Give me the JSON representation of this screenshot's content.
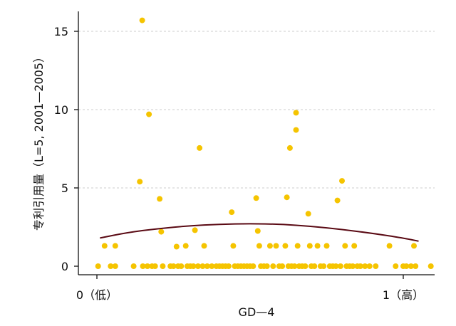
{
  "chart_data": {
    "type": "scatter",
    "title": "",
    "xlabel": "GD—4",
    "ylabel": "专利引用量（L=5, 2001—2005）",
    "xlim": [
      -0.05,
      1.05
    ],
    "ylim": [
      -0.5,
      16.5
    ],
    "x_tick_labels": [
      {
        "x": 0,
        "label": "0（低）"
      },
      {
        "x": 1,
        "label": "1（高）"
      }
    ],
    "y_ticks": [
      0,
      5,
      10,
      15
    ],
    "grid": {
      "horizontal": true,
      "style": "dashed",
      "color": "#cccccc"
    },
    "colors": {
      "points": "#F5C400",
      "fit_line": "#5A0A14",
      "axis": "#111111"
    },
    "points": [
      [
        0.004,
        0
      ],
      [
        0.025,
        1.3
      ],
      [
        0.045,
        0
      ],
      [
        0.06,
        1.3
      ],
      [
        0.06,
        0
      ],
      [
        0.12,
        0
      ],
      [
        0.14,
        5.4
      ],
      [
        0.148,
        15.7
      ],
      [
        0.15,
        0
      ],
      [
        0.165,
        0
      ],
      [
        0.17,
        9.7
      ],
      [
        0.18,
        0
      ],
      [
        0.19,
        0
      ],
      [
        0.205,
        4.3
      ],
      [
        0.21,
        2.2
      ],
      [
        0.215,
        0
      ],
      [
        0.24,
        0
      ],
      [
        0.25,
        0
      ],
      [
        0.26,
        1.25
      ],
      [
        0.265,
        0
      ],
      [
        0.275,
        0
      ],
      [
        0.29,
        1.3
      ],
      [
        0.295,
        0
      ],
      [
        0.305,
        0
      ],
      [
        0.315,
        0
      ],
      [
        0.32,
        2.3
      ],
      [
        0.33,
        0
      ],
      [
        0.335,
        7.55
      ],
      [
        0.345,
        0
      ],
      [
        0.35,
        1.3
      ],
      [
        0.36,
        0
      ],
      [
        0.375,
        0
      ],
      [
        0.39,
        0
      ],
      [
        0.4,
        0
      ],
      [
        0.41,
        0
      ],
      [
        0.42,
        0
      ],
      [
        0.43,
        0
      ],
      [
        0.44,
        3.45
      ],
      [
        0.445,
        1.3
      ],
      [
        0.45,
        0
      ],
      [
        0.46,
        0
      ],
      [
        0.47,
        0
      ],
      [
        0.48,
        0
      ],
      [
        0.49,
        0
      ],
      [
        0.5,
        0
      ],
      [
        0.51,
        0
      ],
      [
        0.52,
        4.35
      ],
      [
        0.525,
        2.25
      ],
      [
        0.53,
        1.3
      ],
      [
        0.535,
        0
      ],
      [
        0.545,
        0
      ],
      [
        0.555,
        0
      ],
      [
        0.565,
        1.3
      ],
      [
        0.575,
        0
      ],
      [
        0.585,
        1.3
      ],
      [
        0.595,
        0
      ],
      [
        0.605,
        0
      ],
      [
        0.615,
        1.3
      ],
      [
        0.62,
        4.4
      ],
      [
        0.625,
        0
      ],
      [
        0.63,
        7.55
      ],
      [
        0.635,
        0
      ],
      [
        0.645,
        0
      ],
      [
        0.65,
        9.8
      ],
      [
        0.65,
        8.7
      ],
      [
        0.655,
        1.3
      ],
      [
        0.66,
        0
      ],
      [
        0.67,
        0
      ],
      [
        0.68,
        0
      ],
      [
        0.69,
        3.35
      ],
      [
        0.695,
        1.3
      ],
      [
        0.7,
        0
      ],
      [
        0.71,
        0
      ],
      [
        0.72,
        1.3
      ],
      [
        0.73,
        0
      ],
      [
        0.74,
        0
      ],
      [
        0.75,
        1.3
      ],
      [
        0.76,
        0
      ],
      [
        0.77,
        0
      ],
      [
        0.78,
        0
      ],
      [
        0.785,
        4.2
      ],
      [
        0.795,
        0
      ],
      [
        0.8,
        5.45
      ],
      [
        0.81,
        1.3
      ],
      [
        0.815,
        0
      ],
      [
        0.825,
        0
      ],
      [
        0.835,
        0
      ],
      [
        0.84,
        1.3
      ],
      [
        0.85,
        0
      ],
      [
        0.86,
        0
      ],
      [
        0.875,
        0
      ],
      [
        0.89,
        0
      ],
      [
        0.91,
        0
      ],
      [
        0.955,
        1.3
      ],
      [
        0.975,
        0
      ],
      [
        1.0,
        0
      ],
      [
        1.01,
        0
      ],
      [
        1.025,
        0
      ],
      [
        1.035,
        1.3
      ],
      [
        1.04,
        0
      ],
      [
        1.09,
        0
      ]
    ],
    "fit_curve": [
      [
        0.01,
        1.8
      ],
      [
        0.1,
        2.15
      ],
      [
        0.2,
        2.4
      ],
      [
        0.3,
        2.58
      ],
      [
        0.4,
        2.68
      ],
      [
        0.5,
        2.72
      ],
      [
        0.6,
        2.68
      ],
      [
        0.7,
        2.55
      ],
      [
        0.8,
        2.35
      ],
      [
        0.9,
        2.1
      ],
      [
        1.0,
        1.8
      ],
      [
        1.05,
        1.6
      ]
    ]
  }
}
